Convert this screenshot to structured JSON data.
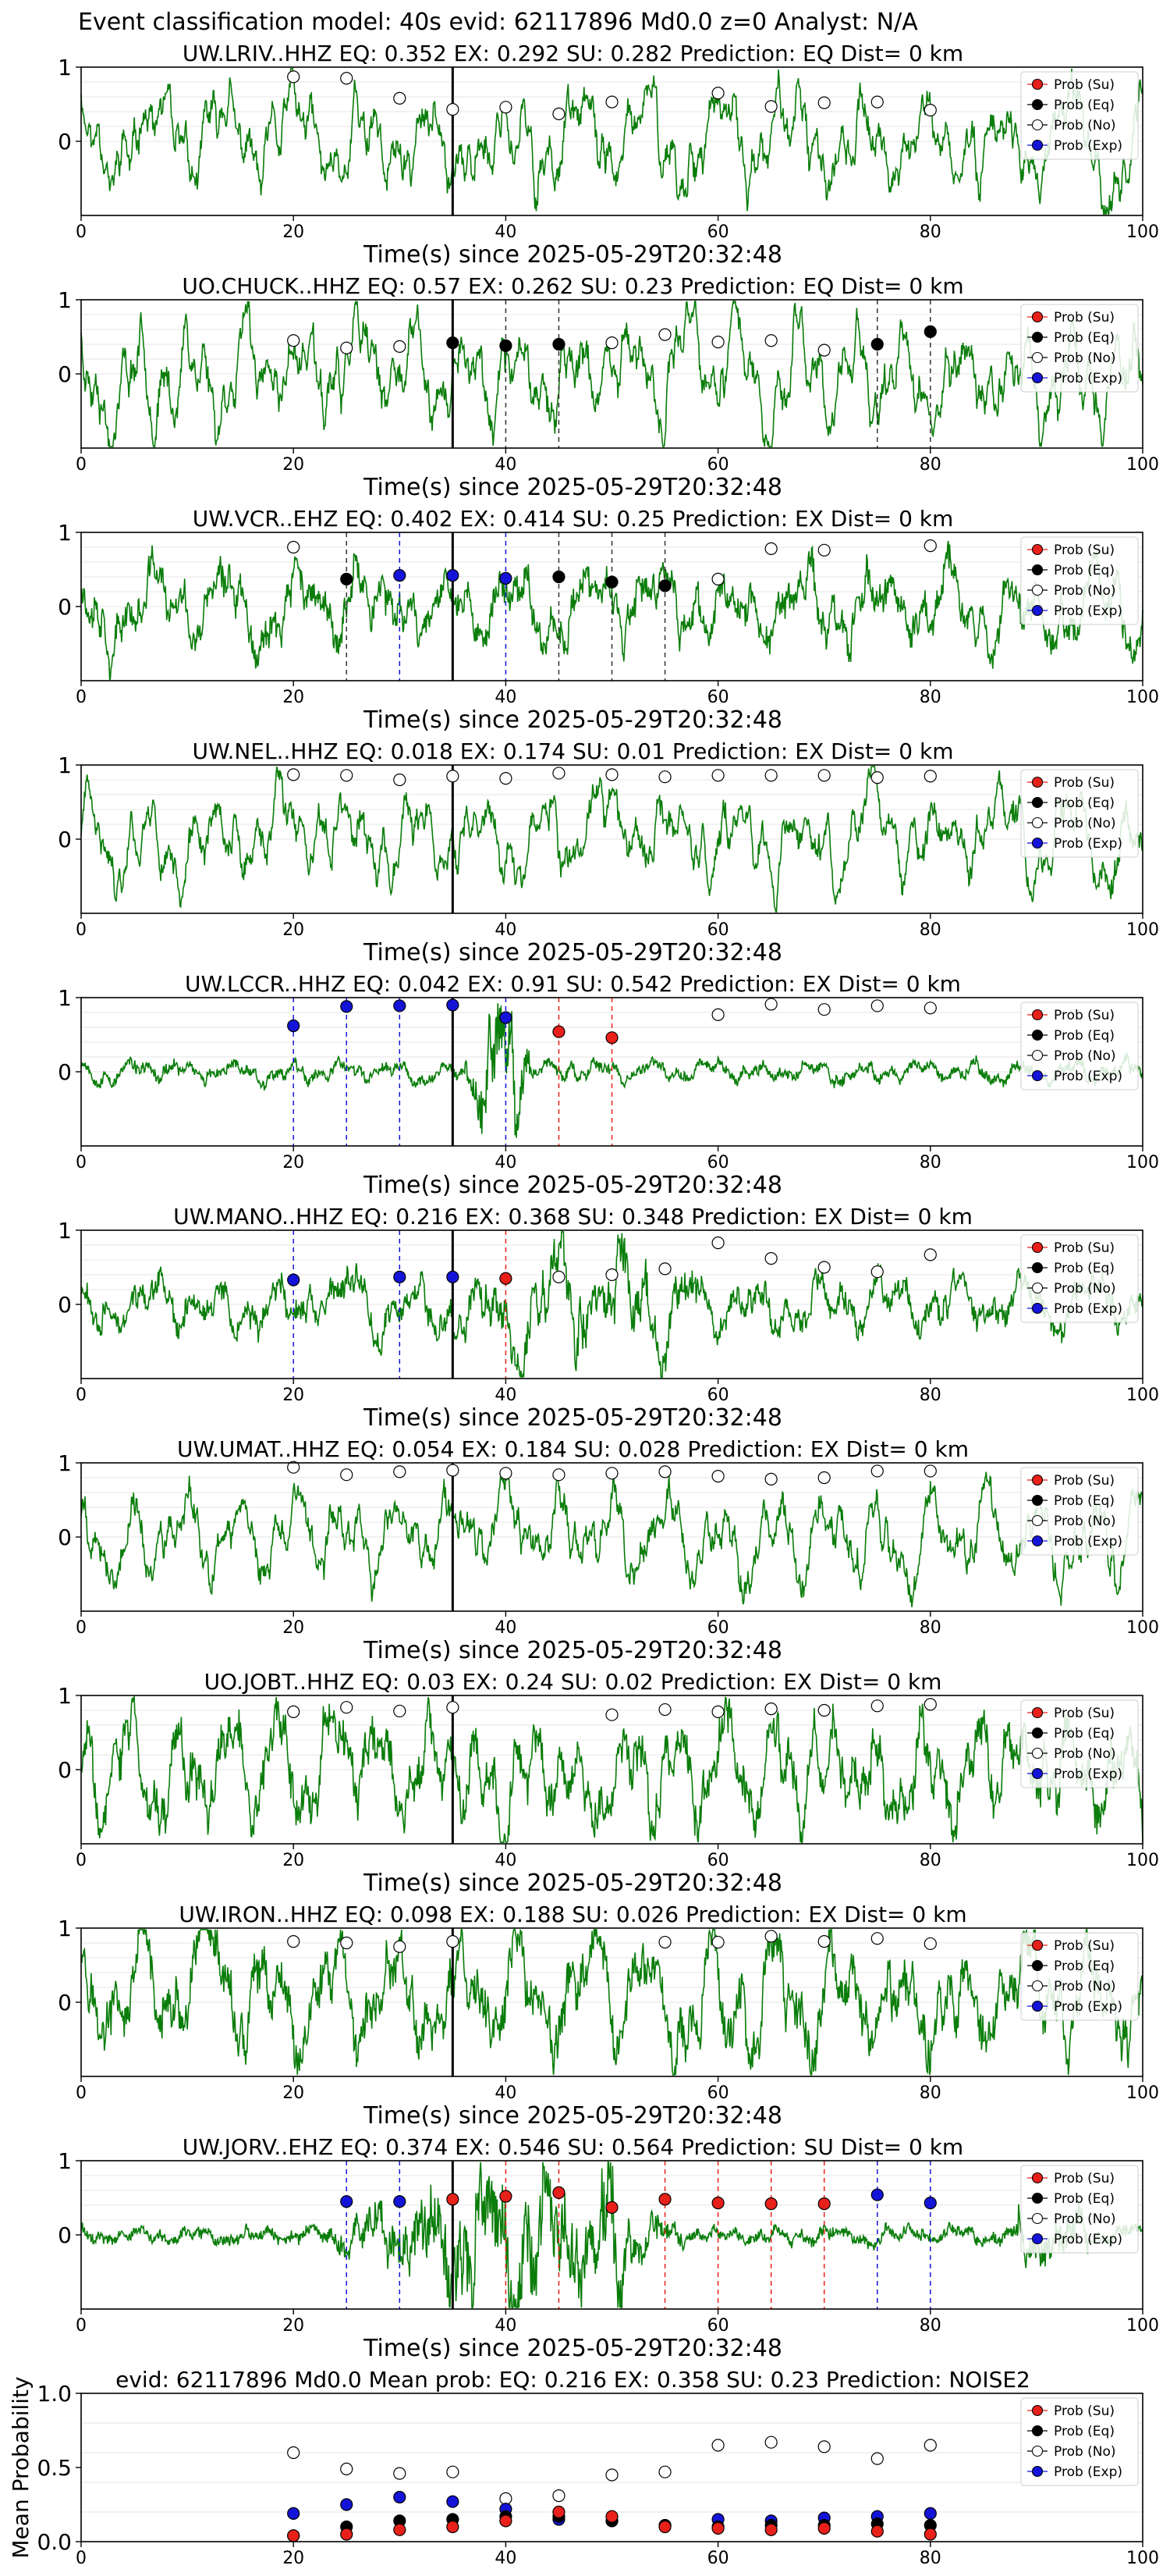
{
  "figure": {
    "title": "Event classification model: 40s evid: 62117896 Md0.0 z=0 Analyst: N/A"
  },
  "legend": {
    "entries": [
      "Prob (Su)",
      "Prob (Eq)",
      "Prob (No)",
      "Prob (Exp)"
    ],
    "colors": [
      "#e8201a",
      "#000000",
      "#ffffff",
      "#1414d8"
    ]
  },
  "colors": {
    "waveform": "#0a7d0a",
    "pick_line": "#000000",
    "grid": "#e6e6e6"
  },
  "chart_data": [
    {
      "type": "line",
      "panel": 1,
      "title": "UW.LRIV..HHZ   EQ: 0.352  EX: 0.292  SU: 0.282   Prediction: EQ    Dist= 0 km",
      "xlabel": "Time(s) since 2025-05-29T20:32:48",
      "ylabel": "",
      "xlim": [
        0,
        100
      ],
      "xticks": [
        0,
        20,
        40,
        60,
        80,
        100
      ],
      "ylim": [
        -1,
        1
      ],
      "yticks": [
        0,
        1
      ],
      "pick_time": 35,
      "waveform_style": "regular",
      "waveform_amp": 0.7,
      "waveform_seed": 11,
      "grid": "horizontal",
      "legend_position": "top-right",
      "series": [
        {
          "name": "Prob (No)",
          "times": [
            20,
            25,
            30,
            35,
            40,
            45,
            50,
            60,
            65,
            70,
            75,
            80
          ],
          "values": [
            0.87,
            0.85,
            0.58,
            0.43,
            0.46,
            0.37,
            0.53,
            0.65,
            0.47,
            0.52,
            0.53,
            0.42
          ]
        }
      ],
      "vlines": []
    },
    {
      "type": "line",
      "panel": 2,
      "title": "UO.CHUCK..HHZ   EQ: 0.57  EX: 0.262  SU: 0.23   Prediction: EQ    Dist= 0 km",
      "xlabel": "Time(s) since 2025-05-29T20:32:48",
      "ylabel": "",
      "xlim": [
        0,
        100
      ],
      "xticks": [
        0,
        20,
        40,
        60,
        80,
        100
      ],
      "ylim": [
        -1,
        1
      ],
      "yticks": [
        0,
        1
      ],
      "pick_time": 35,
      "waveform_style": "regular",
      "waveform_amp": 0.75,
      "waveform_seed": 23,
      "grid": "horizontal",
      "legend_position": "top-right",
      "series": [
        {
          "name": "Prob (No)",
          "times": [
            20,
            25,
            30,
            50,
            55,
            60,
            65,
            70
          ],
          "values": [
            0.45,
            0.35,
            0.37,
            0.42,
            0.53,
            0.43,
            0.45,
            0.32
          ]
        },
        {
          "name": "Prob (Eq)",
          "times": [
            35,
            40,
            45,
            75,
            80
          ],
          "values": [
            0.42,
            0.38,
            0.4,
            0.4,
            0.57
          ]
        }
      ],
      "vlines": [
        {
          "x": 40,
          "series": "Prob (Eq)"
        },
        {
          "x": 45,
          "series": "Prob (Eq)"
        },
        {
          "x": 75,
          "series": "Prob (Eq)"
        },
        {
          "x": 80,
          "series": "Prob (Eq)"
        }
      ]
    },
    {
      "type": "line",
      "panel": 3,
      "title": "UW.VCR..EHZ   EQ: 0.402  EX: 0.414  SU: 0.25   Prediction: EX    Dist= 0 km",
      "xlabel": "Time(s) since 2025-05-29T20:32:48",
      "ylabel": "",
      "xlim": [
        0,
        100
      ],
      "xticks": [
        0,
        20,
        40,
        60,
        80,
        100
      ],
      "ylim": [
        -1,
        1
      ],
      "yticks": [
        0,
        1
      ],
      "pick_time": 35,
      "waveform_style": "noisy",
      "waveform_amp": 0.55,
      "waveform_seed": 37,
      "grid": "horizontal",
      "legend_position": "top-right",
      "series": [
        {
          "name": "Prob (No)",
          "times": [
            20,
            60,
            65,
            70,
            80
          ],
          "values": [
            0.8,
            0.37,
            0.78,
            0.76,
            0.82
          ]
        },
        {
          "name": "Prob (Eq)",
          "times": [
            25,
            45,
            50,
            55
          ],
          "values": [
            0.37,
            0.4,
            0.33,
            0.28
          ]
        },
        {
          "name": "Prob (Exp)",
          "times": [
            30,
            35,
            40
          ],
          "values": [
            0.42,
            0.42,
            0.38
          ]
        }
      ],
      "vlines": [
        {
          "x": 25,
          "series": "Prob (Eq)"
        },
        {
          "x": 30,
          "series": "Prob (Exp)"
        },
        {
          "x": 40,
          "series": "Prob (Exp)"
        },
        {
          "x": 45,
          "series": "Prob (Eq)"
        },
        {
          "x": 50,
          "series": "Prob (Eq)"
        },
        {
          "x": 55,
          "series": "Prob (Eq)"
        }
      ]
    },
    {
      "type": "line",
      "panel": 4,
      "title": "UW.NEL..HHZ   EQ: 0.018  EX: 0.174  SU: 0.01   Prediction: EX    Dist= 0 km",
      "xlabel": "Time(s) since 2025-05-29T20:32:48",
      "ylabel": "",
      "xlim": [
        0,
        100
      ],
      "xticks": [
        0,
        20,
        40,
        60,
        80,
        100
      ],
      "ylim": [
        -1,
        1
      ],
      "yticks": [
        0,
        1
      ],
      "pick_time": 35,
      "waveform_style": "regular",
      "waveform_amp": 0.65,
      "waveform_seed": 41,
      "grid": "horizontal",
      "legend_position": "top-right",
      "series": [
        {
          "name": "Prob (No)",
          "times": [
            20,
            25,
            30,
            35,
            40,
            45,
            50,
            55,
            60,
            65,
            70,
            75,
            80
          ],
          "values": [
            0.87,
            0.86,
            0.8,
            0.85,
            0.82,
            0.89,
            0.87,
            0.84,
            0.86,
            0.86,
            0.86,
            0.83,
            0.85
          ]
        }
      ],
      "vlines": []
    },
    {
      "type": "line",
      "panel": 5,
      "title": "UW.LCCR..HHZ   EQ: 0.042  EX: 0.91  SU: 0.542   Prediction: EX    Dist= 0 km",
      "xlabel": "Time(s) since 2025-05-29T20:32:48",
      "ylabel": "",
      "xlim": [
        0,
        100
      ],
      "xticks": [
        0,
        20,
        40,
        60,
        80,
        100
      ],
      "ylim": [
        -1,
        1
      ],
      "yticks": [
        0,
        1
      ],
      "pick_time": 35,
      "waveform_style": "quiet-burst",
      "waveform_amp": 0.2,
      "waveform_seed": 53,
      "grid": "horizontal",
      "legend_position": "top-right",
      "series": [
        {
          "name": "Prob (Exp)",
          "times": [
            20,
            25,
            30,
            35,
            40
          ],
          "values": [
            0.62,
            0.88,
            0.89,
            0.9,
            0.73
          ]
        },
        {
          "name": "Prob (Su)",
          "times": [
            45,
            50
          ],
          "values": [
            0.54,
            0.46
          ]
        },
        {
          "name": "Prob (No)",
          "times": [
            60,
            65,
            70,
            75,
            80
          ],
          "values": [
            0.77,
            0.91,
            0.84,
            0.89,
            0.86
          ]
        }
      ],
      "vlines": [
        {
          "x": 20,
          "series": "Prob (Exp)"
        },
        {
          "x": 25,
          "series": "Prob (Exp)"
        },
        {
          "x": 30,
          "series": "Prob (Exp)"
        },
        {
          "x": 40,
          "series": "Prob (Exp)"
        },
        {
          "x": 45,
          "series": "Prob (Su)"
        },
        {
          "x": 50,
          "series": "Prob (Su)"
        }
      ]
    },
    {
      "type": "line",
      "panel": 6,
      "title": "UW.MANO..HHZ   EQ: 0.216  EX: 0.368  SU: 0.348   Prediction: EX    Dist= 0 km",
      "xlabel": "Time(s) since 2025-05-29T20:32:48",
      "ylabel": "",
      "xlim": [
        0,
        100
      ],
      "xticks": [
        0,
        20,
        40,
        60,
        80,
        100
      ],
      "ylim": [
        -1,
        1
      ],
      "yticks": [
        0,
        1
      ],
      "pick_time": 35,
      "waveform_style": "noisy-burst",
      "waveform_amp": 0.4,
      "waveform_seed": 67,
      "grid": "horizontal",
      "legend_position": "top-right",
      "series": [
        {
          "name": "Prob (Exp)",
          "times": [
            20,
            30,
            35
          ],
          "values": [
            0.33,
            0.37,
            0.37
          ]
        },
        {
          "name": "Prob (Su)",
          "times": [
            40
          ],
          "values": [
            0.35
          ]
        },
        {
          "name": "Prob (No)",
          "times": [
            45,
            50,
            55,
            60,
            65,
            70,
            75,
            80
          ],
          "values": [
            0.37,
            0.4,
            0.48,
            0.83,
            0.62,
            0.5,
            0.44,
            0.67
          ]
        }
      ],
      "vlines": [
        {
          "x": 20,
          "series": "Prob (Exp)"
        },
        {
          "x": 30,
          "series": "Prob (Exp)"
        },
        {
          "x": 40,
          "series": "Prob (Su)"
        }
      ]
    },
    {
      "type": "line",
      "panel": 7,
      "title": "UW.UMAT..HHZ   EQ: 0.054  EX: 0.184  SU: 0.028   Prediction: EX    Dist= 0 km",
      "xlabel": "Time(s) since 2025-05-29T20:32:48",
      "ylabel": "",
      "xlim": [
        0,
        100
      ],
      "xticks": [
        0,
        20,
        40,
        60,
        80,
        100
      ],
      "ylim": [
        -1,
        1
      ],
      "yticks": [
        0,
        1
      ],
      "pick_time": 35,
      "waveform_style": "regular",
      "waveform_amp": 0.65,
      "waveform_seed": 79,
      "grid": "horizontal",
      "legend_position": "top-right",
      "series": [
        {
          "name": "Prob (No)",
          "times": [
            20,
            25,
            30,
            35,
            40,
            45,
            50,
            55,
            60,
            65,
            70,
            75,
            80
          ],
          "values": [
            0.94,
            0.84,
            0.88,
            0.9,
            0.86,
            0.84,
            0.86,
            0.88,
            0.82,
            0.78,
            0.8,
            0.89,
            0.89
          ]
        }
      ],
      "vlines": []
    },
    {
      "type": "line",
      "panel": 8,
      "title": "UO.JOBT..HHZ   EQ: 0.03  EX: 0.24  SU: 0.02   Prediction: EX    Dist= 0 km",
      "xlabel": "Time(s) since 2025-05-29T20:32:48",
      "ylabel": "",
      "xlim": [
        0,
        100
      ],
      "xticks": [
        0,
        20,
        40,
        60,
        80,
        100
      ],
      "ylim": [
        -1,
        1
      ],
      "yticks": [
        0,
        1
      ],
      "pick_time": 35,
      "waveform_style": "noisy",
      "waveform_amp": 0.7,
      "waveform_seed": 83,
      "grid": "horizontal",
      "legend_position": "top-right",
      "series": [
        {
          "name": "Prob (No)",
          "times": [
            20,
            25,
            30,
            35,
            50,
            55,
            60,
            65,
            70,
            75,
            80
          ],
          "values": [
            0.78,
            0.84,
            0.79,
            0.84,
            0.74,
            0.81,
            0.78,
            0.82,
            0.8,
            0.86,
            0.88
          ]
        }
      ],
      "vlines": []
    },
    {
      "type": "line",
      "panel": 9,
      "title": "UW.IRON..HHZ   EQ: 0.098  EX: 0.188  SU: 0.026   Prediction: EX    Dist= 0 km",
      "xlabel": "Time(s) since 2025-05-29T20:32:48",
      "ylabel": "",
      "xlim": [
        0,
        100
      ],
      "xticks": [
        0,
        20,
        40,
        60,
        80,
        100
      ],
      "ylim": [
        -1,
        1
      ],
      "yticks": [
        0,
        1
      ],
      "pick_time": 35,
      "waveform_style": "noisy",
      "waveform_amp": 0.75,
      "waveform_seed": 97,
      "grid": "horizontal",
      "legend_position": "top-right",
      "series": [
        {
          "name": "Prob (No)",
          "times": [
            20,
            25,
            30,
            35,
            55,
            60,
            65,
            70,
            75,
            80
          ],
          "values": [
            0.82,
            0.8,
            0.75,
            0.82,
            0.81,
            0.81,
            0.89,
            0.82,
            0.86,
            0.79
          ]
        }
      ],
      "vlines": []
    },
    {
      "type": "line",
      "panel": 10,
      "title": "UW.JORV..EHZ   EQ: 0.374  EX: 0.546  SU: 0.564   Prediction: SU    Dist= 0 km",
      "xlabel": "Time(s) since 2025-05-29T20:32:48",
      "ylabel": "",
      "xlim": [
        0,
        100
      ],
      "xticks": [
        0,
        20,
        40,
        60,
        80,
        100
      ],
      "ylim": [
        -1,
        1
      ],
      "yticks": [
        0,
        1
      ],
      "pick_time": 35,
      "waveform_style": "quiet-burst-long",
      "waveform_amp": 0.12,
      "waveform_seed": 101,
      "grid": "horizontal",
      "legend_position": "top-right",
      "series": [
        {
          "name": "Prob (Exp)",
          "times": [
            25,
            30,
            75,
            80
          ],
          "values": [
            0.45,
            0.45,
            0.54,
            0.43
          ]
        },
        {
          "name": "Prob (Su)",
          "times": [
            35,
            40,
            45,
            50,
            55,
            60,
            65,
            70
          ],
          "values": [
            0.48,
            0.52,
            0.57,
            0.37,
            0.48,
            0.43,
            0.42,
            0.42
          ]
        }
      ],
      "vlines": [
        {
          "x": 25,
          "series": "Prob (Exp)"
        },
        {
          "x": 30,
          "series": "Prob (Exp)"
        },
        {
          "x": 40,
          "series": "Prob (Su)"
        },
        {
          "x": 45,
          "series": "Prob (Su)"
        },
        {
          "x": 55,
          "series": "Prob (Su)"
        },
        {
          "x": 60,
          "series": "Prob (Su)"
        },
        {
          "x": 65,
          "series": "Prob (Su)"
        },
        {
          "x": 70,
          "series": "Prob (Su)"
        },
        {
          "x": 75,
          "series": "Prob (Exp)"
        },
        {
          "x": 80,
          "series": "Prob (Exp)"
        }
      ]
    },
    {
      "type": "scatter",
      "panel": 11,
      "title": "evid: 62117896  Md0.0   Mean prob:   EQ: 0.216  EX: 0.358  SU: 0.23   Prediction: NOISE2",
      "xlabel": "",
      "ylabel": "Mean Probability",
      "xlim": [
        0,
        100
      ],
      "xticks": [
        0,
        20,
        40,
        60,
        80,
        100
      ],
      "ylim": [
        0,
        1
      ],
      "yticks": [
        0.0,
        0.5,
        1.0
      ],
      "yticklabels": [
        "0.0",
        "0.5",
        "1.0"
      ],
      "grid": "horizontal",
      "legend_position": "top-right",
      "series": [
        {
          "name": "Prob (No)",
          "times": [
            20,
            25,
            30,
            35,
            40,
            45,
            50,
            55,
            60,
            65,
            70,
            75,
            80
          ],
          "values": [
            0.6,
            0.49,
            0.46,
            0.47,
            0.29,
            0.31,
            0.45,
            0.47,
            0.65,
            0.67,
            0.64,
            0.56,
            0.65
          ]
        },
        {
          "name": "Prob (Exp)",
          "times": [
            20,
            25,
            30,
            35,
            40,
            45,
            50,
            55,
            60,
            65,
            70,
            75,
            80
          ],
          "values": [
            0.19,
            0.25,
            0.3,
            0.27,
            0.22,
            0.15,
            0.14,
            0.11,
            0.15,
            0.14,
            0.16,
            0.17,
            0.19
          ]
        },
        {
          "name": "Prob (Eq)",
          "times": [
            20,
            25,
            30,
            35,
            40,
            45,
            50,
            55,
            60,
            65,
            70,
            75,
            80
          ],
          "values": [
            0.04,
            0.1,
            0.14,
            0.15,
            0.17,
            0.17,
            0.14,
            0.11,
            0.1,
            0.11,
            0.11,
            0.12,
            0.11
          ]
        },
        {
          "name": "Prob (Su)",
          "times": [
            20,
            25,
            30,
            35,
            40,
            45,
            50,
            55,
            60,
            65,
            70,
            75,
            80
          ],
          "values": [
            0.04,
            0.05,
            0.08,
            0.1,
            0.14,
            0.2,
            0.17,
            0.1,
            0.09,
            0.08,
            0.09,
            0.07,
            0.05
          ]
        }
      ],
      "vlines": []
    }
  ]
}
